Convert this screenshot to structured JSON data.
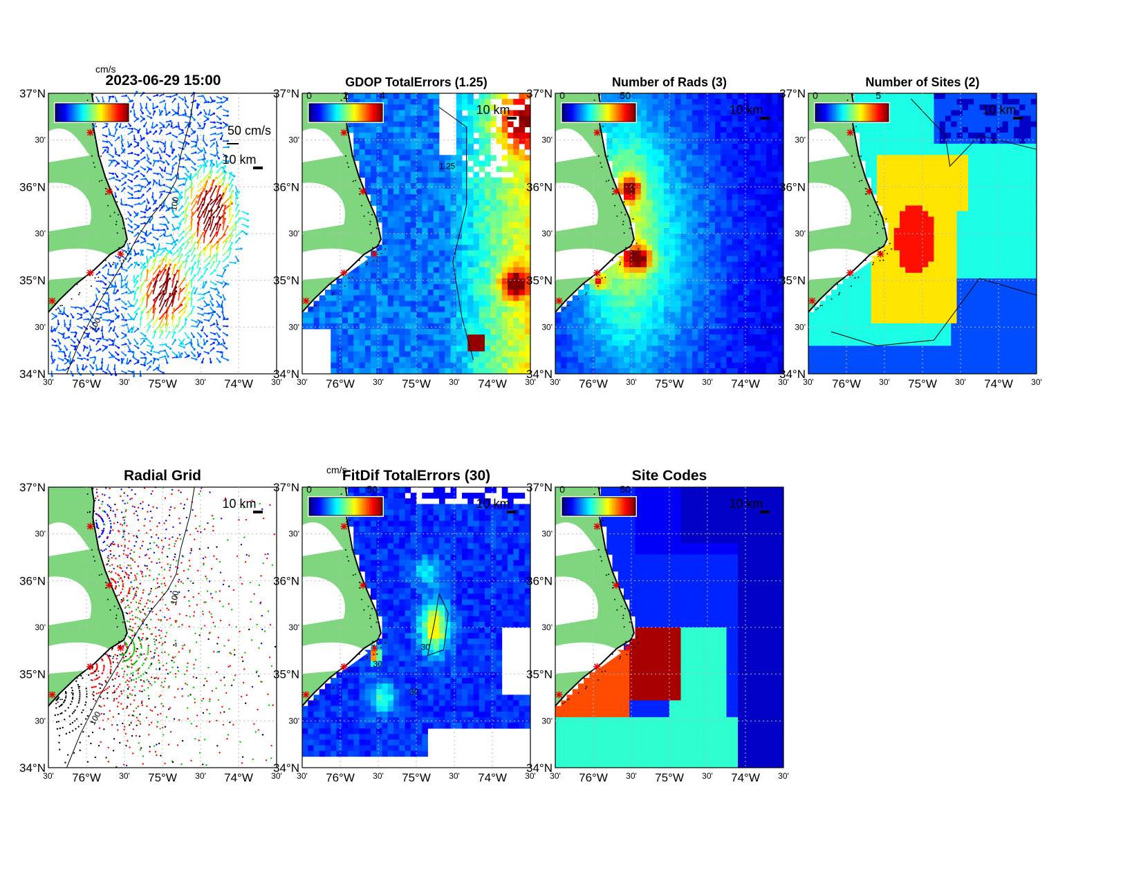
{
  "figure": {
    "timestamp": "2023-06-29 15:00",
    "units": "cm/s",
    "scale_label": "10 km",
    "vector_scale_label": "50 cm/s",
    "colors": {
      "land": "#7fd67f",
      "background": "#ffffff",
      "site_marker": "#e00000",
      "contour": "#000000",
      "grid": "#bbbbbb"
    }
  },
  "axes": {
    "lat_labels": [
      "37°N",
      "30'",
      "36°N",
      "30'",
      "35°N",
      "30'",
      "34°N"
    ],
    "lon_labels": [
      "30'",
      "76°W",
      "30'",
      "75°W",
      "30'",
      "74°W",
      "30'"
    ],
    "lat_range": [
      34,
      37
    ],
    "lon_range": [
      -76.5,
      -73.5
    ]
  },
  "panels": [
    {
      "id": "total-vectors",
      "title": "",
      "colorbar_ticks": [],
      "contour_label": "100",
      "colormap": "jet"
    },
    {
      "id": "gdop-errors",
      "title": "GDOP TotalErrors (1.25)",
      "colorbar_ticks": [
        "0",
        "2",
        "4"
      ],
      "contour_label": "1.25",
      "colormap": "jet"
    },
    {
      "id": "num-rads",
      "title": "Number of Rads (3)",
      "colorbar_ticks": [
        "0",
        "50"
      ],
      "contour_label": "3",
      "colormap": "jet"
    },
    {
      "id": "num-sites",
      "title": "Number of Sites (2)",
      "colorbar_ticks": [
        "0",
        "5"
      ],
      "contour_label": "2",
      "colormap": "jet"
    },
    {
      "id": "radial-grid",
      "title": "Radial Grid",
      "colorbar_ticks": [],
      "contour_label": "100",
      "colormap": "sites"
    },
    {
      "id": "fitdif-errors",
      "title": "FitDif TotalErrors (30)",
      "colorbar_ticks": [
        "0",
        "50"
      ],
      "contour_label": "30",
      "colormap": "jet",
      "units_label": "cm/s"
    },
    {
      "id": "site-codes",
      "title": "Site Codes",
      "colorbar_ticks": [
        "0",
        "50"
      ],
      "contour_label": "",
      "colormap": "jet"
    }
  ],
  "sites": [
    {
      "lon": -75.95,
      "lat": 36.58
    },
    {
      "lon": -75.7,
      "lat": 35.95
    },
    {
      "lon": -75.55,
      "lat": 35.28
    },
    {
      "lon": -75.95,
      "lat": 35.08
    },
    {
      "lon": -76.45,
      "lat": 34.78
    }
  ]
}
